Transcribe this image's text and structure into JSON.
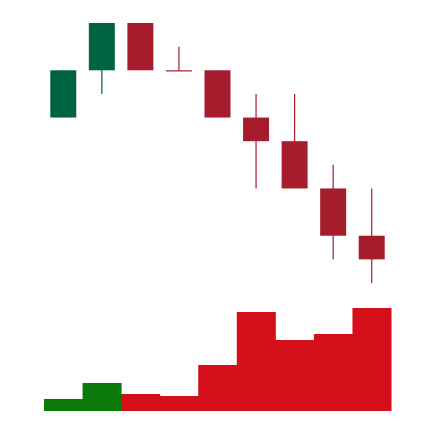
{
  "chart_data": {
    "type": "candlestick",
    "open": [
      8,
      10,
      12,
      10,
      10,
      8,
      7,
      5,
      3
    ],
    "high": [
      10,
      12,
      12,
      11,
      10,
      9,
      9,
      6,
      5
    ],
    "low": [
      8,
      9,
      10,
      10,
      8,
      5,
      5,
      2,
      1
    ],
    "close": [
      10,
      12,
      10,
      10,
      8,
      7,
      5,
      3,
      2
    ],
    "ylim": [
      1,
      12
    ],
    "up_color": "#00633f",
    "down_color": "#a51d2d",
    "volume": {
      "values": [
        12,
        28,
        17,
        15,
        46,
        99,
        71,
        77,
        103
      ],
      "ylim": [
        0,
        110
      ],
      "up_color": "#0a7a0a",
      "down_color": "#d40f1a"
    }
  }
}
